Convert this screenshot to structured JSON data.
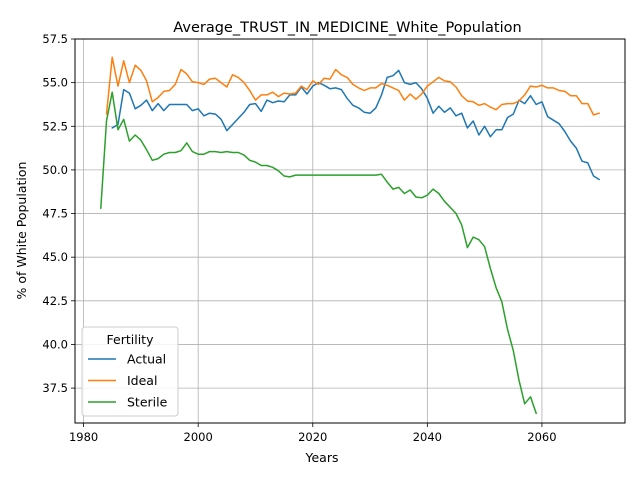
{
  "chart_data": {
    "type": "line",
    "title": "Average_TRUST_IN_MEDICINE_White_Population",
    "xlabel": "Years",
    "ylabel": "% of White Population",
    "xlim": [
      1978.5,
      2074.5
    ],
    "ylim": [
      35.5,
      57.5
    ],
    "xticks": [
      1980,
      2000,
      2020,
      2040,
      2060
    ],
    "xtick_labels": [
      "1980",
      "2000",
      "2020",
      "2040",
      "2060"
    ],
    "yticks": [
      37.5,
      40.0,
      42.5,
      45.0,
      47.5,
      50.0,
      52.5,
      55.0,
      57.5
    ],
    "ytick_labels": [
      "37.5",
      "40.0",
      "42.5",
      "45.0",
      "47.5",
      "50.0",
      "52.5",
      "55.0",
      "57.5"
    ],
    "grid": true,
    "legend": {
      "title": "Fertility",
      "position": "lower-left"
    },
    "series": [
      {
        "name": "Actual",
        "color": "#1f77b4",
        "x": [
          1985,
          1986,
          1987,
          1988,
          1989,
          1990,
          1991,
          1992,
          1993,
          1994,
          1995,
          1996,
          1997,
          1998,
          1999,
          2000,
          2001,
          2002,
          2003,
          2004,
          2005,
          2006,
          2007,
          2008,
          2009,
          2010,
          2011,
          2012,
          2013,
          2014,
          2015,
          2016,
          2017,
          2018,
          2019,
          2020,
          2021,
          2022,
          2023,
          2024,
          2025,
          2026,
          2027,
          2028,
          2029,
          2030,
          2031,
          2032,
          2033,
          2034,
          2035,
          2036,
          2037,
          2038,
          2039,
          2040,
          2041,
          2042,
          2043,
          2044,
          2045,
          2046,
          2047,
          2048,
          2049,
          2050,
          2051,
          2052,
          2053,
          2054,
          2055,
          2056,
          2057,
          2058,
          2059,
          2060,
          2061,
          2062,
          2063,
          2064,
          2065,
          2066,
          2067,
          2068,
          2069,
          2070
        ],
        "y": [
          52.4,
          52.6,
          54.6,
          54.4,
          53.5,
          53.7,
          54.0,
          53.4,
          53.8,
          53.4,
          53.75,
          53.75,
          53.75,
          53.75,
          53.4,
          53.5,
          53.1,
          53.25,
          53.2,
          52.9,
          52.25,
          52.6,
          52.95,
          53.3,
          53.75,
          53.8,
          53.35,
          54.0,
          53.85,
          53.95,
          53.9,
          54.3,
          54.3,
          54.75,
          54.35,
          54.8,
          55.0,
          54.85,
          54.65,
          54.7,
          54.6,
          54.1,
          53.7,
          53.55,
          53.3,
          53.25,
          53.55,
          54.3,
          55.3,
          55.4,
          55.7,
          55.0,
          54.9,
          55.0,
          54.65,
          54.1,
          53.25,
          53.65,
          53.3,
          53.55,
          53.1,
          53.25,
          52.4,
          52.8,
          52.0,
          52.5,
          51.9,
          52.3,
          52.3,
          53.0,
          53.2,
          54.0,
          53.8,
          54.25,
          53.75,
          53.9,
          53.05,
          52.85,
          52.65,
          52.2,
          51.65,
          51.25,
          50.5,
          50.4,
          49.65,
          49.45
        ]
      },
      {
        "name": "Ideal",
        "color": "#ff7f0e",
        "x": [
          1984,
          1985,
          1986,
          1987,
          1988,
          1989,
          1990,
          1991,
          1992,
          1993,
          1994,
          1995,
          1996,
          1997,
          1998,
          1999,
          2000,
          2001,
          2002,
          2003,
          2004,
          2005,
          2006,
          2007,
          2008,
          2009,
          2010,
          2011,
          2012,
          2013,
          2014,
          2015,
          2016,
          2017,
          2018,
          2019,
          2020,
          2021,
          2022,
          2023,
          2024,
          2025,
          2026,
          2027,
          2028,
          2029,
          2030,
          2031,
          2032,
          2033,
          2034,
          2035,
          2036,
          2037,
          2038,
          2039,
          2040,
          2041,
          2042,
          2043,
          2044,
          2045,
          2046,
          2047,
          2048,
          2049,
          2050,
          2051,
          2052,
          2053,
          2054,
          2055,
          2056,
          2057,
          2058,
          2059,
          2060,
          2061,
          2062,
          2063,
          2064,
          2065,
          2066,
          2067,
          2068,
          2069,
          2070
        ],
        "y": [
          53.2,
          56.45,
          54.8,
          56.25,
          55.0,
          56.0,
          55.7,
          55.1,
          53.9,
          54.15,
          54.5,
          54.55,
          54.9,
          55.75,
          55.5,
          55.05,
          55.0,
          54.9,
          55.2,
          55.25,
          55.0,
          54.75,
          55.45,
          55.3,
          55.0,
          54.55,
          54.0,
          54.3,
          54.3,
          54.45,
          54.2,
          54.4,
          54.35,
          54.4,
          54.8,
          54.6,
          55.1,
          54.9,
          55.25,
          55.2,
          55.75,
          55.45,
          55.3,
          54.9,
          54.7,
          54.55,
          54.7,
          54.7,
          54.95,
          54.85,
          54.7,
          54.55,
          54.0,
          54.35,
          54.05,
          54.35,
          54.8,
          55.05,
          55.3,
          55.1,
          55.05,
          54.75,
          54.25,
          53.95,
          53.9,
          53.7,
          53.8,
          53.6,
          53.45,
          53.75,
          53.8,
          53.8,
          53.95,
          54.3,
          54.8,
          54.75,
          54.85,
          54.7,
          54.7,
          54.55,
          54.5,
          54.25,
          54.25,
          53.8,
          53.8,
          53.15,
          53.25
        ]
      },
      {
        "name": "Sterile",
        "color": "#2ca02c",
        "x": [
          1983,
          1984,
          1985,
          1986,
          1987,
          1988,
          1989,
          1990,
          1991,
          1992,
          1993,
          1994,
          1995,
          1996,
          1997,
          1998,
          1999,
          2000,
          2001,
          2002,
          2003,
          2004,
          2005,
          2006,
          2007,
          2008,
          2009,
          2010,
          2011,
          2012,
          2013,
          2014,
          2015,
          2016,
          2017,
          2018,
          2019,
          2020,
          2021,
          2022,
          2023,
          2024,
          2025,
          2026,
          2027,
          2028,
          2029,
          2030,
          2031,
          2032,
          2033,
          2034,
          2035,
          2036,
          2037,
          2038,
          2039,
          2040,
          2041,
          2042,
          2043,
          2044,
          2045,
          2046,
          2047,
          2048,
          2049,
          2050,
          2051,
          2052,
          2053,
          2054,
          2055,
          2056,
          2057,
          2058,
          2059
        ],
        "y": [
          47.8,
          52.8,
          54.45,
          52.3,
          52.9,
          51.65,
          52.0,
          51.7,
          51.15,
          50.55,
          50.65,
          50.9,
          51.0,
          51.0,
          51.1,
          51.55,
          51.05,
          50.9,
          50.9,
          51.05,
          51.05,
          51.0,
          51.05,
          51.0,
          51.0,
          50.85,
          50.55,
          50.45,
          50.25,
          50.25,
          50.15,
          49.95,
          49.65,
          49.6,
          49.7,
          49.7,
          49.7,
          49.7,
          49.7,
          49.7,
          49.7,
          49.7,
          49.7,
          49.7,
          49.7,
          49.7,
          49.7,
          49.7,
          49.7,
          49.75,
          49.3,
          48.9,
          49.0,
          48.65,
          48.85,
          48.45,
          48.4,
          48.55,
          48.9,
          48.65,
          48.2,
          47.85,
          47.5,
          46.85,
          45.55,
          46.15,
          46.0,
          45.6,
          44.35,
          43.25,
          42.45,
          40.85,
          39.65,
          37.95,
          36.6,
          37.0,
          36.05
        ]
      }
    ]
  }
}
